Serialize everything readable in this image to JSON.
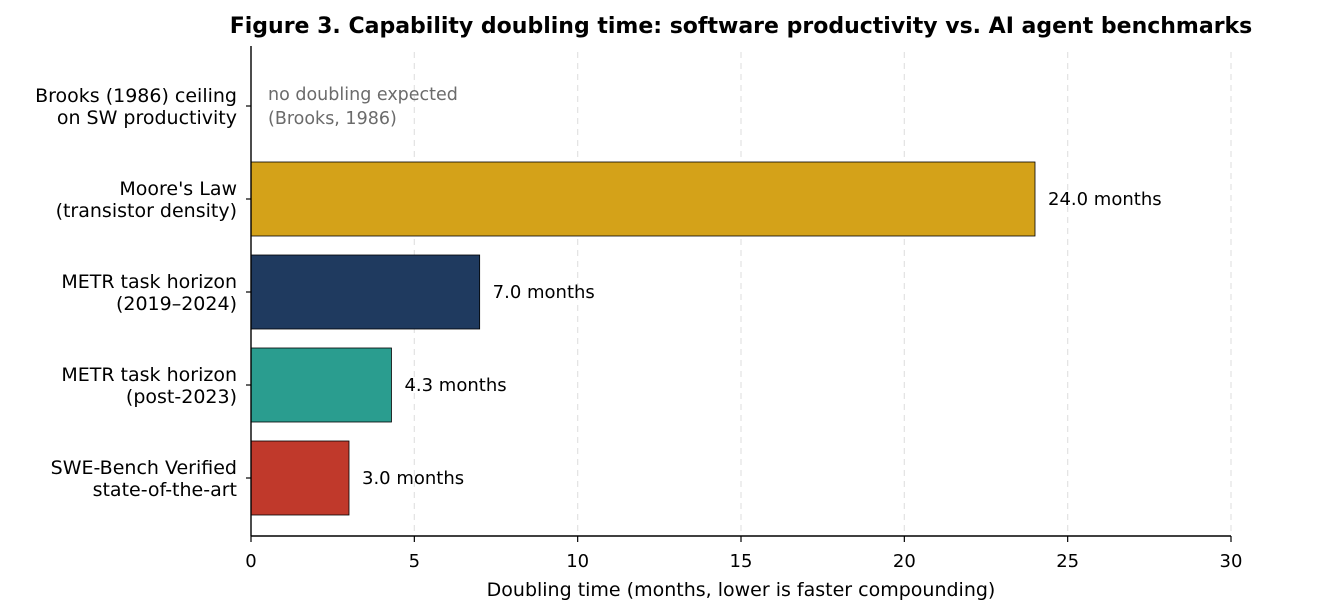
{
  "chart_data": {
    "type": "bar",
    "orientation": "horizontal",
    "title": "Figure 3. Capability doubling time: software productivity vs. AI agent benchmarks",
    "xlabel": "Doubling time (months, lower is faster compounding)",
    "ylabel": "",
    "xlim": [
      0,
      30
    ],
    "xticks": [
      "0",
      "5",
      "10",
      "15",
      "20",
      "25",
      "30"
    ],
    "grid": "x-axis dashed",
    "categories": [
      [
        "Brooks (1986) ceiling",
        "on SW productivity"
      ],
      [
        "Moore's Law",
        "(transistor density)"
      ],
      [
        "METR task horizon",
        "(2019–2024)"
      ],
      [
        "METR task horizon",
        "(post-2023)"
      ],
      [
        "SWE-Bench Verified",
        "state-of-the-art"
      ]
    ],
    "values": [
      null,
      24.0,
      7.0,
      4.3,
      3.0
    ],
    "value_labels": [
      "",
      "24.0 months",
      "7.0 months",
      "4.3 months",
      "3.0 months"
    ],
    "colors": [
      "#ffffff",
      "#d4a219",
      "#1f3a5f",
      "#2a9d8f",
      "#c0392b"
    ],
    "annotations": [
      [
        "no doubling expected",
        "(Brooks, 1986)"
      ]
    ]
  }
}
